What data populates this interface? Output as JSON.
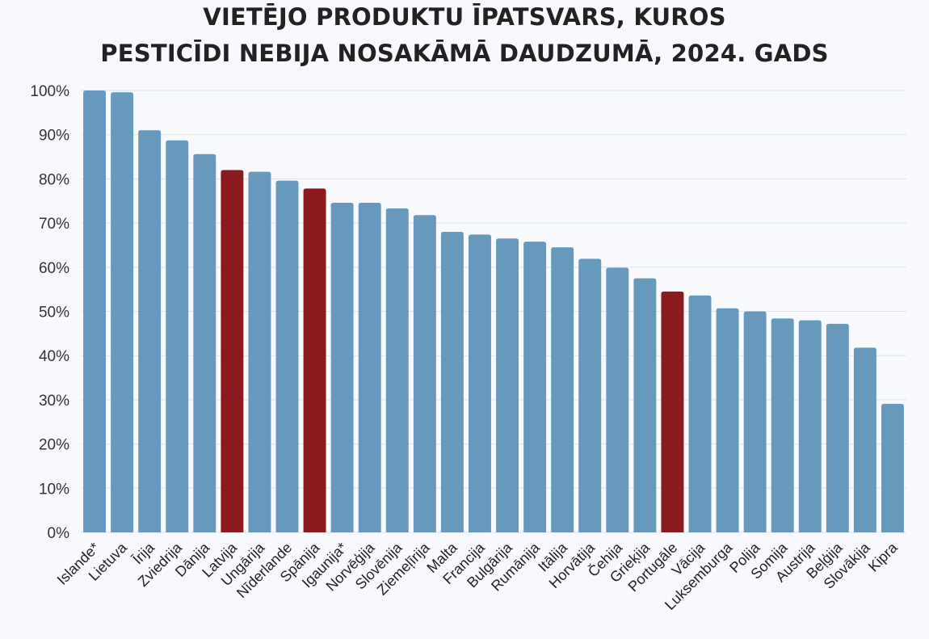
{
  "chart_data": {
    "type": "bar",
    "title": [
      "VIETĒJO PRODUKTU ĪPATSVARS, KUROS",
      "PESTICĪDI NEBIJA NOSAKĀMĀ DAUDZUMĀ, 2024. GADS"
    ],
    "xlabel": "",
    "ylabel": "",
    "ylim": [
      0,
      100
    ],
    "yticks": [
      "0%",
      "10%",
      "20%",
      "30%",
      "40%",
      "50%",
      "60%",
      "70%",
      "80%",
      "90%",
      "100%"
    ],
    "grid": true,
    "colors": {
      "default": "#6699bb",
      "highlight": "#8b1a1e"
    },
    "highlighted": [
      "Latvija",
      "Spānija",
      "Portugāle"
    ],
    "categories": [
      "Islande*",
      "Lietuva",
      "Īrija",
      "Zviedrija",
      "Dānija",
      "Latvija",
      "Ungārija",
      "Nīderlande",
      "Spānija",
      "Igaunija*",
      "Norvēģija",
      "Slovēnija",
      "Ziemeļīrija",
      "Malta",
      "Francija",
      "Bulgārija",
      "Rumānija",
      "Itālija",
      "Horvātija",
      "Čehija",
      "Grieķija",
      "Portugāle",
      "Vācija",
      "Luksemburga",
      "Polija",
      "Somija",
      "Austrija",
      "Beļģija",
      "Slovākija",
      "Kipra"
    ],
    "values": [
      100,
      99.6,
      91,
      88.7,
      85.6,
      82,
      81.6,
      79.6,
      77.8,
      74.6,
      74.6,
      73.3,
      71.8,
      68,
      67.4,
      66.5,
      65.8,
      64.5,
      61.9,
      59.9,
      57.5,
      54.5,
      53.6,
      50.7,
      50,
      48.4,
      48,
      47.2,
      41.8,
      29.1
    ]
  }
}
